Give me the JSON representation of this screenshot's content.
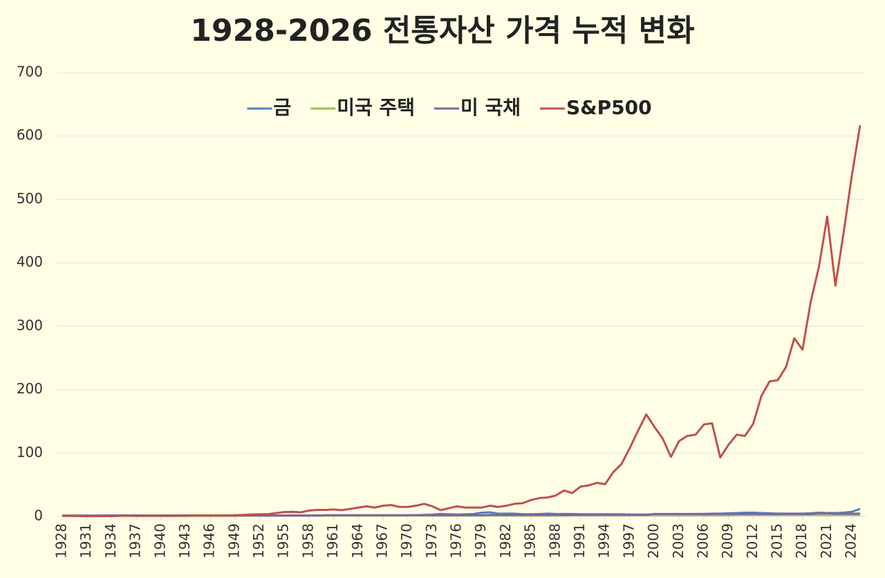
{
  "chart_data": {
    "type": "line",
    "title": "1928-2026 전통자산 가격 누적 변화",
    "x": [
      1928,
      1929,
      1930,
      1931,
      1932,
      1933,
      1934,
      1935,
      1936,
      1937,
      1938,
      1939,
      1940,
      1941,
      1942,
      1943,
      1944,
      1945,
      1946,
      1947,
      1948,
      1949,
      1950,
      1951,
      1952,
      1953,
      1954,
      1955,
      1956,
      1957,
      1958,
      1959,
      1960,
      1961,
      1962,
      1963,
      1964,
      1965,
      1966,
      1967,
      1968,
      1969,
      1970,
      1971,
      1972,
      1973,
      1974,
      1975,
      1976,
      1977,
      1978,
      1979,
      1980,
      1981,
      1982,
      1983,
      1984,
      1985,
      1986,
      1987,
      1988,
      1989,
      1990,
      1991,
      1992,
      1993,
      1994,
      1995,
      1996,
      1997,
      1998,
      1999,
      2000,
      2001,
      2002,
      2003,
      2004,
      2005,
      2006,
      2007,
      2008,
      2009,
      2010,
      2011,
      2012,
      2013,
      2014,
      2015,
      2016,
      2017,
      2018,
      2019,
      2020,
      2021,
      2022,
      2023,
      2024,
      2025
    ],
    "xlim": [
      1928,
      2025
    ],
    "xticks": [
      1928,
      1931,
      1934,
      1937,
      1940,
      1943,
      1946,
      1949,
      1952,
      1955,
      1958,
      1961,
      1964,
      1967,
      1970,
      1973,
      1976,
      1979,
      1982,
      1985,
      1988,
      1991,
      1994,
      1997,
      2000,
      2003,
      2006,
      2009,
      2012,
      2015,
      2018,
      2021,
      2024
    ],
    "ylim": [
      0,
      700
    ],
    "yticks": [
      0,
      100,
      200,
      300,
      400,
      500,
      600,
      700
    ],
    "grid": true,
    "legend": "top",
    "series": [
      {
        "name": "금",
        "color": "#4f81bd",
        "values": [
          1,
          1,
          1,
          1,
          1,
          1.4,
          1.7,
          1.7,
          1.7,
          1.7,
          1.7,
          1.7,
          1.7,
          1.7,
          1.7,
          1.7,
          1.7,
          1.7,
          1.7,
          1.7,
          1.7,
          1.7,
          1.7,
          1.7,
          1.7,
          1.7,
          1.7,
          1.7,
          1.7,
          1.7,
          1.7,
          1.7,
          1.7,
          1.7,
          1.7,
          1.7,
          1.7,
          1.7,
          1.7,
          1.7,
          1.7,
          1.7,
          1.7,
          2,
          2.5,
          3,
          4,
          3.5,
          3,
          3.5,
          4,
          6,
          6.5,
          4.5,
          4.5,
          4.5,
          3.5,
          3.5,
          4,
          4.5,
          4,
          4,
          4,
          3.5,
          3.5,
          3.5,
          3.5,
          3.5,
          3.5,
          3,
          3,
          3,
          3,
          3,
          3,
          3.5,
          3.5,
          4,
          4,
          4.5,
          4.5,
          5,
          5.5,
          6,
          6,
          5.5,
          5,
          4.5,
          4.5,
          4.5,
          4.5,
          5,
          6,
          5.5,
          5.5,
          6,
          7.5,
          12
        ]
      },
      {
        "name": "미국 주택",
        "color": "#9bbb59",
        "values": [
          1,
          1,
          1,
          1,
          1,
          1,
          1,
          1,
          1,
          1,
          1,
          1,
          1,
          1,
          1,
          1,
          1,
          1,
          1,
          1,
          1,
          1,
          1.2,
          1.2,
          1.2,
          1.2,
          1.2,
          1.2,
          1.2,
          1.2,
          1.2,
          1.2,
          1.2,
          1.2,
          1.2,
          1.2,
          1.2,
          1.2,
          1.2,
          1.2,
          1.2,
          1.2,
          1.5,
          1.5,
          1.5,
          1.5,
          1.5,
          1.5,
          1.5,
          1.5,
          1.5,
          1.5,
          1.5,
          1.5,
          1.5,
          1.5,
          1.5,
          1.5,
          1.5,
          1.5,
          1.5,
          1.5,
          2,
          2,
          2,
          2,
          2,
          2,
          2,
          2,
          2,
          2,
          2,
          2,
          2,
          2,
          2,
          2,
          2,
          2,
          2,
          2,
          2.5,
          2.5,
          2.5,
          2.5,
          2.5,
          2.5,
          2.5,
          2.5,
          2.5,
          2.5,
          2.5,
          2.5,
          2.5,
          2.5,
          2.5,
          2.5
        ]
      },
      {
        "name": "미 국채",
        "color": "#8064a2",
        "values": [
          1.5,
          1.5,
          1.5,
          1.5,
          1.5,
          1.5,
          1.5,
          1.5,
          1.5,
          1.5,
          1.5,
          1.5,
          1.5,
          1.5,
          1.5,
          1.5,
          1.5,
          1.5,
          1.5,
          1.5,
          1.5,
          1.5,
          1.5,
          1.5,
          1.5,
          1.5,
          1.5,
          1.5,
          1.5,
          1.5,
          1.5,
          1.5,
          2,
          2,
          2,
          2,
          2,
          2,
          2,
          2,
          2,
          2,
          2,
          2,
          2,
          2,
          2,
          2,
          2,
          2,
          2,
          2,
          2.5,
          2.5,
          2.5,
          2.5,
          2.5,
          2.5,
          2.5,
          2.5,
          2.5,
          2.5,
          2.5,
          2.5,
          2.5,
          2.5,
          2.5,
          2.5,
          2.5,
          2.5,
          2.5,
          2.5,
          4,
          4,
          4,
          4,
          4,
          4,
          4,
          4,
          4,
          4,
          4,
          4,
          4,
          4,
          4,
          4,
          4,
          4,
          4,
          4,
          5.5,
          5,
          4.5,
          4.5,
          4.5,
          4.5
        ]
      },
      {
        "name": "S&P500",
        "color": "#c0504d",
        "values": [
          1,
          0.9,
          0.7,
          0.4,
          0.4,
          0.6,
          0.6,
          0.9,
          1.2,
          0.8,
          1,
          1,
          0.9,
          0.8,
          0.9,
          1.1,
          1.3,
          1.7,
          1.6,
          1.6,
          1.7,
          2,
          2.5,
          3.1,
          3.6,
          3.6,
          5.4,
          7,
          7.4,
          6.5,
          9.3,
          10.4,
          10.4,
          11,
          10,
          12,
          14,
          16,
          14,
          17,
          18,
          15,
          15,
          17,
          20,
          16,
          10,
          13,
          16,
          14,
          14,
          14,
          17,
          15,
          17,
          20,
          21,
          26,
          29,
          30,
          33,
          41,
          37,
          47,
          49,
          53,
          51,
          70,
          83,
          108,
          135,
          161,
          141,
          123,
          94,
          119,
          127,
          129,
          145,
          147,
          93,
          113,
          129,
          127,
          146,
          190,
          213,
          215,
          236,
          281,
          263,
          339,
          394,
          473,
          364,
          448,
          538,
          617
        ]
      }
    ]
  }
}
